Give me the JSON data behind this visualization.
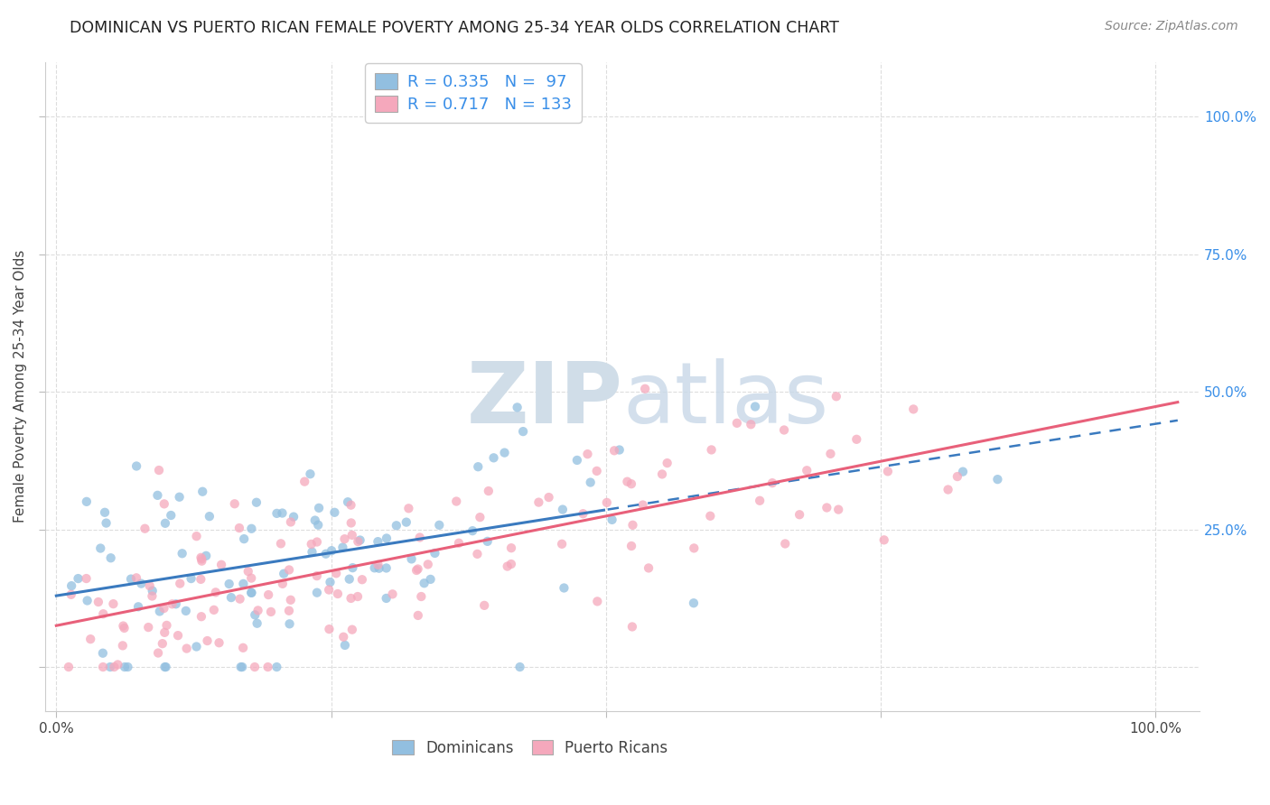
{
  "title": "DOMINICAN VS PUERTO RICAN FEMALE POVERTY AMONG 25-34 YEAR OLDS CORRELATION CHART",
  "source": "Source: ZipAtlas.com",
  "ylabel": "Female Poverty Among 25-34 Year Olds",
  "dominican_color": "#92bfe0",
  "puerto_rican_color": "#f5a8bc",
  "dominican_line_color": "#3a7abf",
  "puerto_rican_line_color": "#e8607a",
  "dominican_R": 0.335,
  "dominican_N": 97,
  "puerto_rican_R": 0.717,
  "puerto_rican_N": 133,
  "background_color": "#ffffff",
  "grid_color": "#dddddd",
  "title_color": "#222222",
  "axis_label_color": "#444444",
  "right_tick_color": "#3a8fe8",
  "watermark_color": "#d0dde8"
}
